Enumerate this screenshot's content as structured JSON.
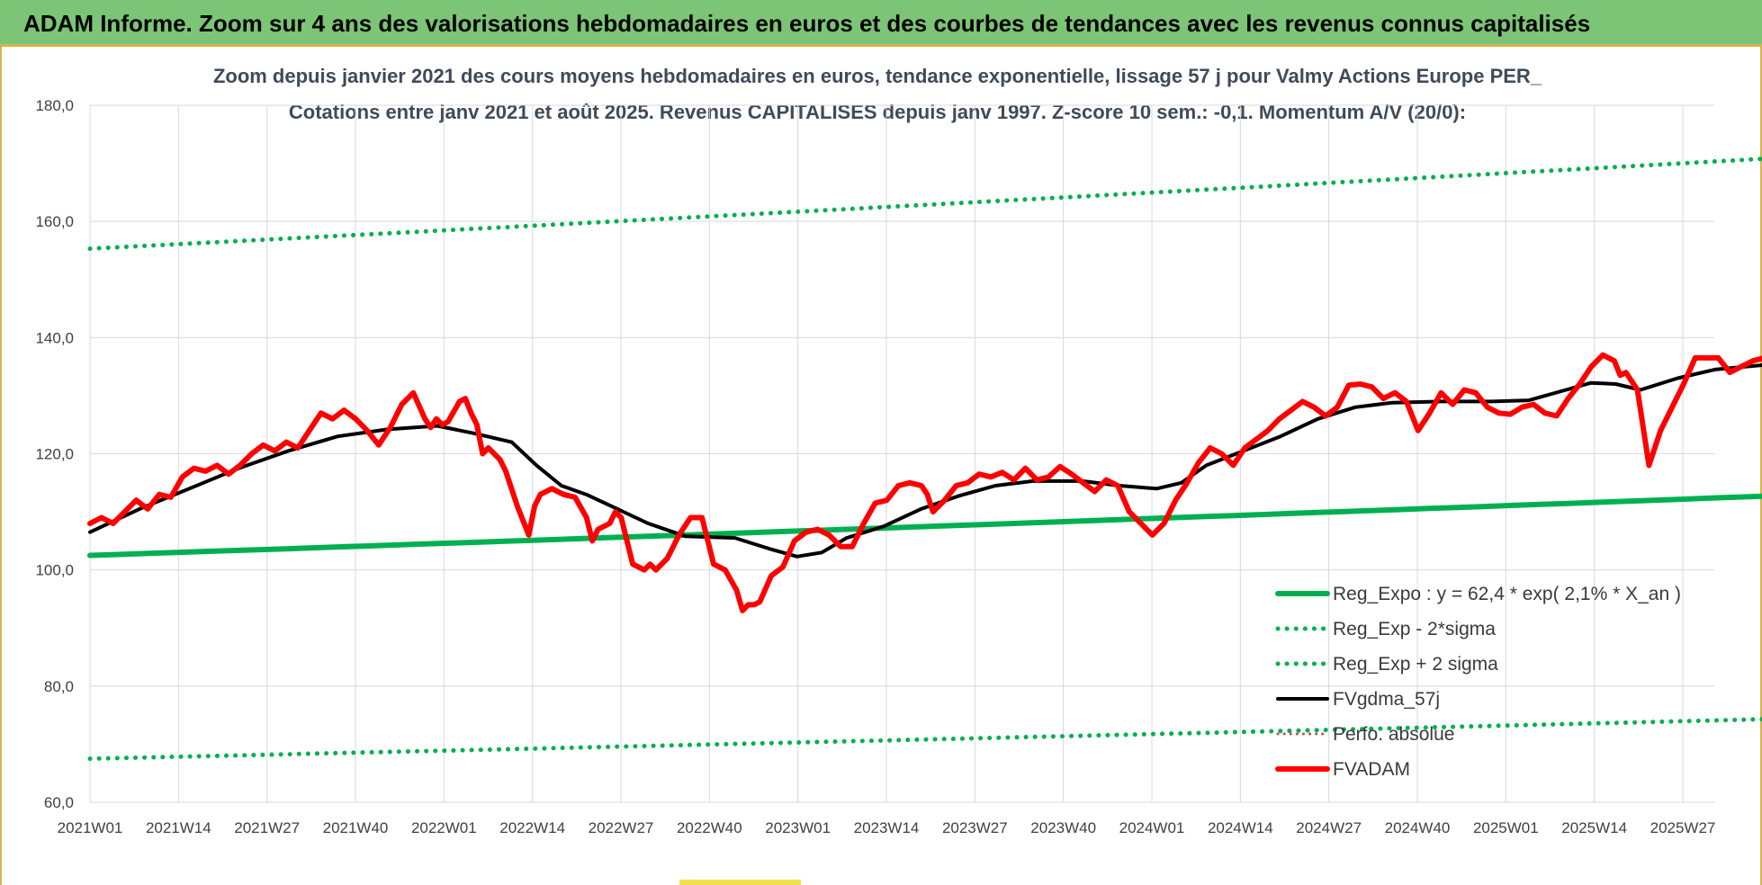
{
  "header": {
    "banner_title": "ADAM Informe. Zoom sur 4 ans des valorisations hebdomadaires en euros et des courbes de tendances avec les revenus connus capitalisés"
  },
  "colors": {
    "banner_bg": "#7cc576",
    "reg_expo": "#00b050",
    "fvgdma": "#000000",
    "fvadam": "#ff0000",
    "perfo": "#c0504d",
    "grid": "#d9d9d9"
  },
  "chart_data": {
    "type": "line",
    "title_line1": "Zoom depuis janvier 2021 des cours moyens hebdomadaires en euros, tendance exponentielle, lissage 57 j pour Valmy Actions Europe PER_",
    "title_line2": "Cotations entre janv 2021 et août 2025. Revenus CAPITALISES depuis janv 1997. Z-score 10 sem.: -0,1. Momentum A/V (20/0):",
    "xlabel": "",
    "ylabel": "",
    "ylim": [
      60,
      180
    ],
    "yticks": [
      "60,0",
      "80,0",
      "100,0",
      "120,0",
      "140,0",
      "160,0",
      "180,0"
    ],
    "x_tick_labels": [
      "2021W01",
      "2021W14",
      "2021W27",
      "2021W40",
      "2022W01",
      "2022W14",
      "2022W27",
      "2022W40",
      "2023W01",
      "2023W14",
      "2023W27",
      "2023W40",
      "2024W01",
      "2024W14",
      "2024W27",
      "2024W40",
      "2025W01",
      "2025W14",
      "2025W27"
    ],
    "x_range_weeks": [
      0,
      246
    ],
    "grid": true,
    "legend_position": "bottom-right",
    "series": [
      {
        "name": "Reg_Expo : y = 62,4 * exp( 2,1% *  X_an )",
        "style": "solid-thick",
        "color": "#00b050",
        "points": [
          [
            0,
            102.5
          ],
          [
            246,
            112.7
          ]
        ]
      },
      {
        "name": "Reg_Exp - 2*sigma",
        "style": "dotted",
        "color": "#00b050",
        "points": [
          [
            0,
            67.5
          ],
          [
            246,
            74.3
          ]
        ]
      },
      {
        "name": "Reg_Exp + 2 sigma",
        "style": "dotted",
        "color": "#00b050",
        "points": [
          [
            0,
            155.3
          ],
          [
            246,
            170.8
          ]
        ]
      },
      {
        "name": "FVgdma_57j",
        "style": "solid",
        "color": "#000000",
        "points": [
          [
            0,
            106.5
          ],
          [
            8,
            110.5
          ],
          [
            16,
            114
          ],
          [
            24,
            117.5
          ],
          [
            32,
            120.5
          ],
          [
            40,
            123
          ],
          [
            48,
            124.2
          ],
          [
            56,
            124.8
          ],
          [
            62,
            123.5
          ],
          [
            68,
            122
          ],
          [
            72,
            118
          ],
          [
            76,
            114.5
          ],
          [
            80,
            113
          ],
          [
            84,
            111
          ],
          [
            90,
            108
          ],
          [
            96,
            105.8
          ],
          [
            104,
            105.5
          ],
          [
            110,
            103.5
          ],
          [
            114,
            102.3
          ],
          [
            118,
            103
          ],
          [
            122,
            105.5
          ],
          [
            128,
            107.5
          ],
          [
            134,
            110.5
          ],
          [
            140,
            112.7
          ],
          [
            146,
            114.5
          ],
          [
            152,
            115.3
          ],
          [
            160,
            115.3
          ],
          [
            166,
            114.5
          ],
          [
            172,
            114
          ],
          [
            176,
            115
          ],
          [
            180,
            118
          ],
          [
            186,
            120.5
          ],
          [
            192,
            123
          ],
          [
            198,
            126
          ],
          [
            204,
            128
          ],
          [
            210,
            128.8
          ],
          [
            218,
            129
          ],
          [
            226,
            129
          ],
          [
            232,
            129.2
          ],
          [
            238,
            131
          ],
          [
            242,
            132.2
          ],
          [
            246,
            132
          ],
          [
            250,
            131
          ],
          [
            256,
            133
          ],
          [
            262,
            134.5
          ],
          [
            270,
            135.3
          ]
        ]
      },
      {
        "name": "Perfo. absolue",
        "style": "dotted-thin",
        "color": "#c0504d",
        "points": []
      },
      {
        "name": "FVADAM",
        "style": "solid-thick",
        "color": "#ff0000",
        "points": [
          [
            0,
            108
          ],
          [
            2,
            109
          ],
          [
            4,
            108
          ],
          [
            6,
            110
          ],
          [
            8,
            112
          ],
          [
            10,
            110.5
          ],
          [
            12,
            113
          ],
          [
            14,
            112.5
          ],
          [
            16,
            116
          ],
          [
            18,
            117.5
          ],
          [
            20,
            117
          ],
          [
            22,
            118
          ],
          [
            24,
            116.5
          ],
          [
            26,
            118
          ],
          [
            28,
            120
          ],
          [
            30,
            121.5
          ],
          [
            32,
            120.5
          ],
          [
            34,
            122
          ],
          [
            36,
            121
          ],
          [
            38,
            124
          ],
          [
            40,
            127
          ],
          [
            42,
            126
          ],
          [
            44,
            127.5
          ],
          [
            46,
            126
          ],
          [
            48,
            124
          ],
          [
            50,
            121.5
          ],
          [
            52,
            124.5
          ],
          [
            54,
            128.5
          ],
          [
            56,
            130.5
          ],
          [
            58,
            126
          ],
          [
            59,
            124.5
          ],
          [
            60,
            126
          ],
          [
            61,
            125
          ],
          [
            62,
            125.5
          ],
          [
            64,
            129
          ],
          [
            65,
            129.5
          ],
          [
            66,
            127
          ],
          [
            67,
            125
          ],
          [
            68,
            120
          ],
          [
            69,
            121
          ],
          [
            71,
            119
          ],
          [
            72,
            117
          ],
          [
            74,
            111
          ],
          [
            76,
            106
          ],
          [
            77,
            111
          ],
          [
            78,
            113
          ],
          [
            80,
            114
          ],
          [
            82,
            113
          ],
          [
            84,
            112.5
          ],
          [
            86,
            109
          ],
          [
            87,
            105
          ],
          [
            88,
            107
          ],
          [
            90,
            108
          ],
          [
            91,
            110
          ],
          [
            92,
            109
          ],
          [
            94,
            101
          ],
          [
            96,
            100
          ],
          [
            97,
            101
          ],
          [
            98,
            100
          ],
          [
            100,
            102
          ],
          [
            102,
            106
          ],
          [
            104,
            109
          ],
          [
            106,
            109
          ],
          [
            108,
            101
          ],
          [
            110,
            100
          ],
          [
            112,
            96.5
          ],
          [
            113,
            93
          ],
          [
            114,
            94
          ],
          [
            115,
            94
          ],
          [
            116,
            94.5
          ],
          [
            118,
            99
          ],
          [
            120,
            100.5
          ],
          [
            122,
            105
          ],
          [
            124,
            106.5
          ],
          [
            126,
            107
          ],
          [
            128,
            106
          ],
          [
            130,
            104
          ],
          [
            132,
            104
          ],
          [
            134,
            108
          ],
          [
            136,
            111.5
          ],
          [
            138,
            112
          ],
          [
            140,
            114.5
          ],
          [
            142,
            115
          ],
          [
            144,
            114.5
          ],
          [
            145,
            113
          ],
          [
            146,
            110
          ],
          [
            148,
            112
          ],
          [
            150,
            114.5
          ],
          [
            152,
            115
          ],
          [
            154,
            116.5
          ],
          [
            156,
            116
          ],
          [
            158,
            116.8
          ],
          [
            160,
            115.5
          ],
          [
            162,
            117.5
          ],
          [
            164,
            115.5
          ],
          [
            166,
            116
          ],
          [
            168,
            117.8
          ],
          [
            170,
            116.5
          ],
          [
            172,
            115
          ],
          [
            174,
            113.5
          ],
          [
            176,
            115.5
          ],
          [
            178,
            114.5
          ],
          [
            180,
            110
          ],
          [
            182,
            108
          ],
          [
            184,
            106
          ],
          [
            186,
            108
          ],
          [
            188,
            112
          ],
          [
            190,
            115
          ],
          [
            192,
            118.5
          ],
          [
            194,
            121
          ],
          [
            196,
            120
          ],
          [
            198,
            118
          ],
          [
            200,
            121
          ],
          [
            202,
            122.5
          ],
          [
            204,
            124
          ],
          [
            206,
            126
          ],
          [
            208,
            127.5
          ],
          [
            210,
            129
          ],
          [
            212,
            128
          ],
          [
            214,
            126.5
          ],
          [
            216,
            128
          ],
          [
            218,
            131.8
          ],
          [
            220,
            132
          ],
          [
            222,
            131.5
          ],
          [
            224,
            129.5
          ],
          [
            226,
            130.5
          ],
          [
            228,
            129
          ],
          [
            230,
            124
          ],
          [
            232,
            127
          ],
          [
            234,
            130.5
          ],
          [
            236,
            128.5
          ],
          [
            238,
            131
          ],
          [
            240,
            130.5
          ],
          [
            242,
            128
          ],
          [
            244,
            127
          ],
          [
            246,
            126.8
          ],
          [
            248,
            128
          ],
          [
            250,
            128.5
          ],
          [
            252,
            127
          ],
          [
            254,
            126.5
          ],
          [
            256,
            129.5
          ],
          [
            258,
            132
          ],
          [
            260,
            135
          ],
          [
            262,
            137
          ],
          [
            264,
            136
          ],
          [
            265,
            133.5
          ],
          [
            266,
            134
          ],
          [
            268,
            131
          ],
          [
            270,
            118
          ],
          [
            272,
            124
          ],
          [
            274,
            128
          ],
          [
            276,
            132
          ],
          [
            278,
            136.5
          ],
          [
            280,
            136.5
          ],
          [
            282,
            136.5
          ],
          [
            284,
            134
          ],
          [
            286,
            135
          ],
          [
            288,
            136
          ],
          [
            290,
            136.5
          ]
        ]
      }
    ]
  }
}
